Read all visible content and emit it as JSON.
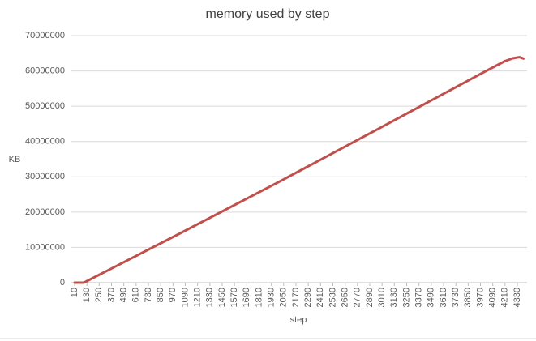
{
  "chart_data": {
    "type": "line",
    "title": "memory used by step",
    "x_label": "step",
    "y_label": "KB",
    "x": [
      10,
      100,
      1000,
      2000,
      3000,
      4000,
      4210,
      4290,
      4350,
      4390
    ],
    "series": [
      {
        "name": "KB",
        "color": "#c0504d",
        "values": [
          0,
          0,
          13400000,
          28500000,
          44000000,
          59600000,
          62800000,
          63600000,
          63900000,
          63500000
        ]
      }
    ],
    "xlim": [
      10,
      4390
    ],
    "xticks": [
      10,
      130,
      250,
      370,
      490,
      610,
      730,
      850,
      970,
      1090,
      1210,
      1330,
      1450,
      1570,
      1690,
      1810,
      1930,
      2050,
      2170,
      2290,
      2410,
      2530,
      2650,
      2770,
      2890,
      3010,
      3130,
      3250,
      3370,
      3490,
      3610,
      3730,
      3850,
      3970,
      4090,
      4210,
      4330
    ],
    "ylim": [
      0,
      70000000
    ],
    "yticks": [
      0,
      10000000,
      20000000,
      30000000,
      40000000,
      50000000,
      60000000,
      70000000
    ],
    "grid": true
  }
}
